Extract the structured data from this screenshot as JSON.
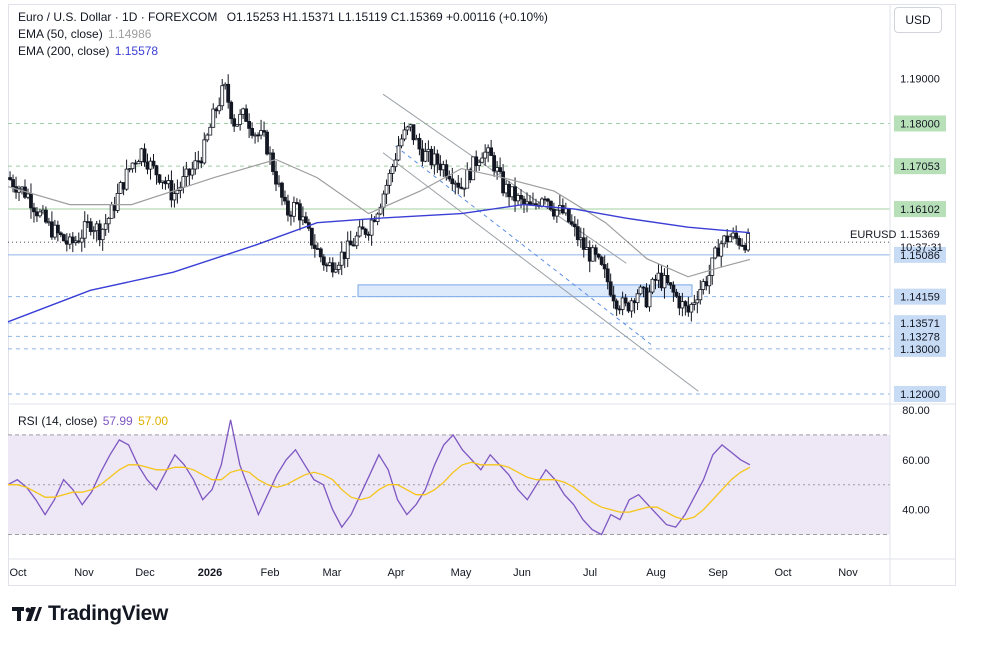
{
  "header": {
    "title": "Euro / U.S. Dollar · 1D · FOREXCOM",
    "ohlc": "O1.15253  H1.15371  L1.15119  C1.15369  +0.00116 (+0.10%)",
    "ema50_label": "EMA (50, close)",
    "ema50_value": "1.14986",
    "ema200_label": "EMA (200, close)",
    "ema200_value": "1.15578",
    "rsi_label": "RSI (14, close)",
    "rsi_value": "57.99",
    "rsi_ma_value": "57.00"
  },
  "currency_button": "USD",
  "brand": "TradingView",
  "price_tag": {
    "symbol": "EURUSD",
    "price": "1.15369",
    "countdown": "10:37:31"
  },
  "colors": {
    "up": "#131722",
    "down": "#131722",
    "ema50": "#9e9e9e",
    "ema200": "#3a3fd6",
    "rsi": "#7e57c2",
    "rsi_ma": "#f5c518",
    "rsi_band": "#ede7f6",
    "level_green": "#b8e0b8",
    "level_blue": "#c7dbf5",
    "zone": "#ddeafc"
  },
  "chart_data": [
    {
      "type": "candlestick",
      "symbol": "EURUSD",
      "timeframe": "1D",
      "x_tick_labels": [
        "Oct",
        "Nov",
        "Dec",
        "2026",
        "Feb",
        "Mar",
        "Apr",
        "May",
        "Jun",
        "Jul",
        "Aug",
        "Sep",
        "Oct",
        "Nov"
      ],
      "ylim": [
        1.118,
        1.2065
      ],
      "y_tick_labels": [
        "1.19000",
        "1.18000",
        "1.17053",
        "1.16102",
        "1.15086",
        "1.14159",
        "1.13571",
        "1.13278",
        "1.13000",
        "1.12000"
      ],
      "levels": [
        {
          "value": 1.18,
          "label": "1.18000",
          "style": "green"
        },
        {
          "value": 1.17053,
          "label": "1.17053",
          "style": "green"
        },
        {
          "value": 1.16102,
          "label": "1.16102",
          "style": "green"
        },
        {
          "value": 1.15086,
          "label": "1.15086",
          "style": "blue"
        },
        {
          "value": 1.14159,
          "label": "1.14159",
          "style": "blue"
        },
        {
          "value": 1.13571,
          "label": "1.13571",
          "style": "blue"
        },
        {
          "value": 1.13278,
          "label": "1.13278",
          "style": "blue"
        },
        {
          "value": 1.13,
          "label": "1.13000",
          "style": "blue"
        },
        {
          "value": 1.12,
          "label": "1.12000",
          "style": "blue"
        }
      ],
      "plain_ticks": [
        {
          "value": 1.19,
          "label": "1.19000"
        }
      ],
      "last_price": 1.15369,
      "close_path": [
        [
          0,
          1.168
        ],
        [
          5,
          1.166
        ],
        [
          10,
          1.164
        ],
        [
          15,
          1.16
        ],
        [
          20,
          1.157
        ],
        [
          25,
          1.155
        ],
        [
          30,
          1.153
        ],
        [
          35,
          1.155
        ],
        [
          40,
          1.158
        ],
        [
          45,
          1.156
        ],
        [
          50,
          1.16
        ],
        [
          55,
          1.166
        ],
        [
          60,
          1.171
        ],
        [
          65,
          1.174
        ],
        [
          70,
          1.17
        ],
        [
          75,
          1.168
        ],
        [
          80,
          1.164
        ],
        [
          85,
          1.167
        ],
        [
          90,
          1.17
        ],
        [
          95,
          1.174
        ],
        [
          100,
          1.182
        ],
        [
          105,
          1.188
        ],
        [
          110,
          1.18
        ],
        [
          115,
          1.182
        ],
        [
          120,
          1.178
        ],
        [
          125,
          1.176
        ],
        [
          130,
          1.168
        ],
        [
          135,
          1.16
        ],
        [
          140,
          1.162
        ],
        [
          145,
          1.156
        ],
        [
          150,
          1.152
        ],
        [
          155,
          1.148
        ],
        [
          160,
          1.15
        ],
        [
          165,
          1.152
        ],
        [
          170,
          1.155
        ],
        [
          175,
          1.157
        ],
        [
          180,
          1.162
        ],
        [
          185,
          1.168
        ],
        [
          190,
          1.176
        ],
        [
          195,
          1.179
        ],
        [
          200,
          1.174
        ],
        [
          205,
          1.172
        ],
        [
          210,
          1.171
        ],
        [
          215,
          1.169
        ],
        [
          220,
          1.166
        ],
        [
          225,
          1.17
        ],
        [
          230,
          1.174
        ],
        [
          235,
          1.172
        ],
        [
          240,
          1.166
        ],
        [
          245,
          1.164
        ],
        [
          250,
          1.162
        ],
        [
          255,
          1.161
        ],
        [
          260,
          1.165
        ],
        [
          265,
          1.161
        ],
        [
          270,
          1.16
        ],
        [
          275,
          1.156
        ],
        [
          280,
          1.152
        ],
        [
          285,
          1.15
        ],
        [
          290,
          1.146
        ],
        [
          295,
          1.141
        ],
        [
          300,
          1.139
        ],
        [
          305,
          1.143
        ],
        [
          310,
          1.141
        ],
        [
          315,
          1.146
        ],
        [
          320,
          1.144
        ],
        [
          325,
          1.141
        ],
        [
          330,
          1.138
        ],
        [
          335,
          1.143
        ],
        [
          340,
          1.146
        ],
        [
          345,
          1.153
        ],
        [
          350,
          1.155
        ],
        [
          355,
          1.154
        ],
        [
          360,
          1.1537
        ]
      ],
      "ema50_path": [
        [
          0,
          1.166
        ],
        [
          30,
          1.162
        ],
        [
          60,
          1.162
        ],
        [
          100,
          1.168
        ],
        [
          130,
          1.172
        ],
        [
          150,
          1.168
        ],
        [
          175,
          1.16
        ],
        [
          200,
          1.165
        ],
        [
          220,
          1.17
        ],
        [
          240,
          1.168
        ],
        [
          265,
          1.165
        ],
        [
          290,
          1.158
        ],
        [
          310,
          1.15
        ],
        [
          330,
          1.146
        ],
        [
          345,
          1.148
        ],
        [
          360,
          1.14986
        ]
      ],
      "ema200_path": [
        [
          0,
          1.136
        ],
        [
          40,
          1.143
        ],
        [
          80,
          1.147
        ],
        [
          120,
          1.153
        ],
        [
          150,
          1.158
        ],
        [
          180,
          1.159
        ],
        [
          220,
          1.16
        ],
        [
          250,
          1.162
        ],
        [
          275,
          1.161
        ],
        [
          300,
          1.159
        ],
        [
          330,
          1.157
        ],
        [
          360,
          1.15578
        ]
      ]
    },
    {
      "type": "line",
      "name": "RSI (14, close)",
      "ylim": [
        23,
        82
      ],
      "y_tick_labels": [
        "80.00",
        "60.00",
        "40.00"
      ],
      "band": [
        30,
        70
      ],
      "midline": 50,
      "series": [
        {
          "name": "RSI",
          "values": [
            50,
            52,
            49,
            44,
            38,
            44,
            52,
            48,
            42,
            47,
            55,
            62,
            68,
            66,
            58,
            52,
            48,
            55,
            62,
            58,
            52,
            44,
            48,
            58,
            76,
            58,
            48,
            38,
            46,
            54,
            60,
            64,
            58,
            52,
            50,
            40,
            33,
            38,
            46,
            54,
            62,
            56,
            44,
            38,
            42,
            48,
            58,
            66,
            70,
            64,
            60,
            56,
            62,
            58,
            54,
            48,
            44,
            50,
            56,
            52,
            46,
            42,
            36,
            32,
            30,
            38,
            36,
            44,
            46,
            42,
            38,
            34,
            33,
            38,
            45,
            52,
            62,
            66,
            63,
            60,
            58
          ]
        },
        {
          "name": "RSI MA",
          "values": [
            50,
            50,
            49,
            47,
            45,
            45,
            46,
            47,
            47,
            48,
            50,
            53,
            56,
            58,
            58,
            57,
            56,
            56,
            57,
            57,
            56,
            54,
            52,
            52,
            55,
            56,
            55,
            52,
            50,
            49,
            50,
            52,
            54,
            55,
            54,
            52,
            48,
            45,
            44,
            45,
            48,
            50,
            50,
            48,
            46,
            46,
            48,
            51,
            55,
            58,
            59,
            58,
            58,
            58,
            57,
            55,
            53,
            52,
            52,
            52,
            51,
            49,
            46,
            43,
            41,
            40,
            39,
            39,
            40,
            41,
            41,
            39,
            37,
            36,
            37,
            40,
            44,
            48,
            52,
            55,
            57
          ]
        }
      ]
    }
  ]
}
